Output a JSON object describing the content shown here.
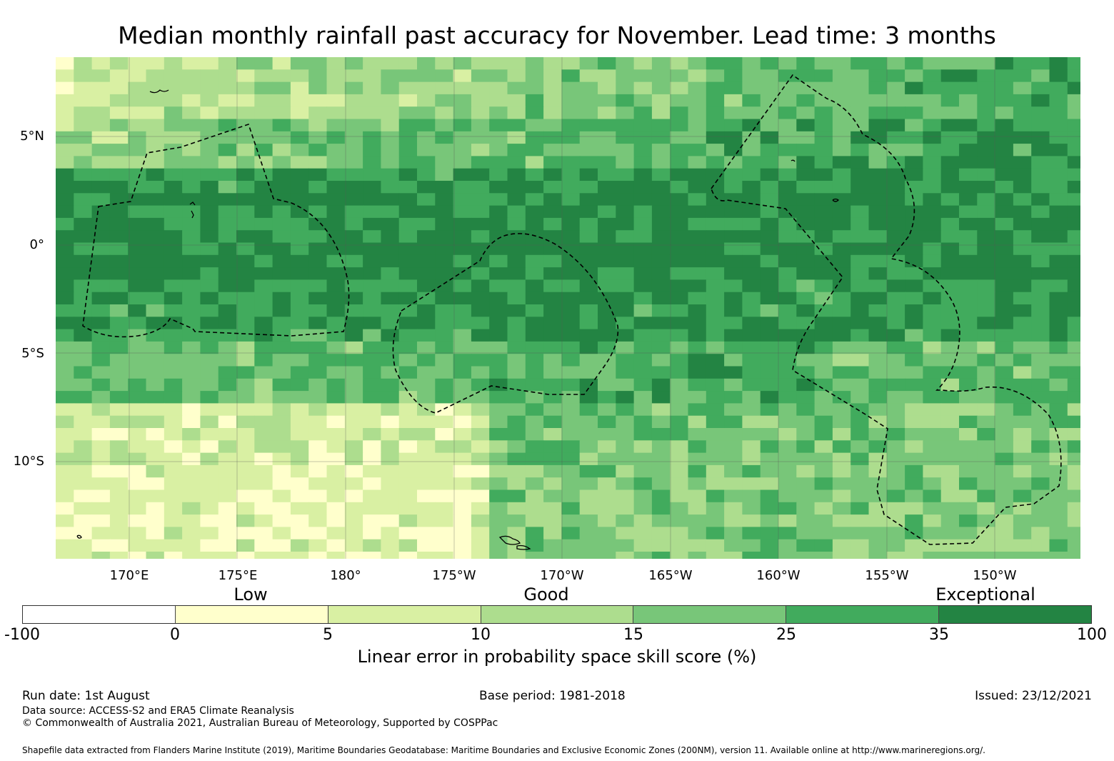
{
  "title": "Median monthly rainfall past accuracy for November. Lead time: 3 months",
  "map": {
    "lat_labels": [
      "5°N",
      "0°",
      "5°S",
      "10°S"
    ],
    "lon_labels": [
      "170°E",
      "175°E",
      "180°",
      "175°W",
      "170°W",
      "165°W",
      "160°W",
      "155°W",
      "150°W"
    ],
    "coastline_color": "#000000",
    "eez_boundary_style": "dashed"
  },
  "legend": {
    "categories": [
      "Low",
      "Good",
      "Exceptional"
    ],
    "bins": [
      {
        "from": "-100",
        "to": "0",
        "color": "#ffffff"
      },
      {
        "from": "0",
        "to": "5",
        "color": "#ffffcc"
      },
      {
        "from": "5",
        "to": "10",
        "color": "#d9f0a3"
      },
      {
        "from": "10",
        "to": "15",
        "color": "#addd8e"
      },
      {
        "from": "15",
        "to": "25",
        "color": "#78c679"
      },
      {
        "from": "25",
        "to": "35",
        "color": "#41ab5d"
      },
      {
        "from": "35",
        "to": "100",
        "color": "#238443"
      }
    ],
    "ticks": [
      "-100",
      "0",
      "5",
      "10",
      "15",
      "25",
      "35",
      "100"
    ],
    "label": "Linear error in probability space skill score (%)"
  },
  "footer": {
    "run_date": "Run date: 1st August",
    "base_period": "Base period: 1981-2018",
    "issued": "Issued: 23/12/2021",
    "data_source": "Data source: ACCESS-S2 and ERA5 Climate Reanalysis",
    "copyright": "© Commonwealth of Australia 2021, Australian Bureau of Meteorology, Supported by COSPPac",
    "shapefile": "Shapefile data extracted from Flanders Marine Institute (2019), Maritime Boundaries Geodatabase: Maritime Boundaries and Exclusive Economic Zones (200NM), version 11. Available online at http://www.marineregions.org/."
  }
}
